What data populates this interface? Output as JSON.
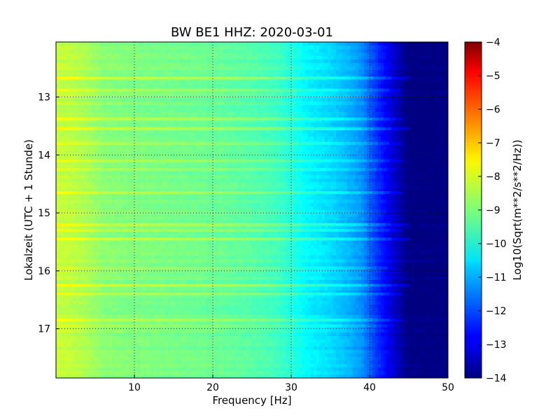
{
  "chart_data": {
    "type": "heatmap",
    "title": "BW BE1 HHZ: 2020-03-01",
    "xlabel": "Frequency [Hz]",
    "ylabel": "Lokalzeit (UTC + 1 Stunde)",
    "xlim": [
      0,
      50
    ],
    "ylim": [
      17.85,
      12.05
    ],
    "x_ticks": [
      10,
      20,
      30,
      40,
      50
    ],
    "y_ticks": [
      13,
      14,
      15,
      16,
      17
    ],
    "grid": true,
    "colormap": "jet",
    "colorbar": {
      "label": "Log10(Sqrt(m**2/s**2/Hz))",
      "range": [
        -14,
        -4
      ],
      "ticks": [
        -4,
        -5,
        -6,
        -7,
        -8,
        -9,
        -10,
        -11,
        -12,
        -13,
        -14
      ]
    },
    "frequency_profile": {
      "frequency_hz": [
        0,
        2,
        4,
        6,
        10,
        15,
        20,
        25,
        28,
        30,
        32,
        35,
        37,
        39,
        40,
        41,
        42,
        43,
        44,
        45,
        47,
        50
      ],
      "level_log10": [
        -8.3,
        -8.4,
        -8.6,
        -8.9,
        -9.0,
        -9.1,
        -9.2,
        -9.4,
        -9.6,
        -9.9,
        -10.3,
        -10.6,
        -10.9,
        -11.3,
        -11.8,
        -12.3,
        -12.7,
        -13.2,
        -13.6,
        -14,
        -14,
        -14
      ]
    },
    "bright_bands": [
      {
        "time": 12.67,
        "delta": 0.6,
        "fmax": 45
      },
      {
        "time": 12.88,
        "delta": 0.4,
        "fmax": 44
      },
      {
        "time": 13.38,
        "delta": 0.5,
        "fmax": 44
      },
      {
        "time": 13.55,
        "delta": 0.6,
        "fmax": 45
      },
      {
        "time": 13.8,
        "delta": 0.4,
        "fmax": 44
      },
      {
        "time": 14.1,
        "delta": 0.4,
        "fmax": 44
      },
      {
        "time": 14.25,
        "delta": 0.3,
        "fmax": 43
      },
      {
        "time": 14.65,
        "delta": 0.5,
        "fmax": 44
      },
      {
        "time": 15.2,
        "delta": 0.6,
        "fmax": 45
      },
      {
        "time": 15.3,
        "delta": 0.4,
        "fmax": 44
      },
      {
        "time": 15.45,
        "delta": 0.6,
        "fmax": 45
      },
      {
        "time": 15.95,
        "delta": 0.3,
        "fmax": 43
      },
      {
        "time": 16.25,
        "delta": 0.6,
        "fmax": 45
      },
      {
        "time": 16.4,
        "delta": 0.4,
        "fmax": 44
      },
      {
        "time": 16.85,
        "delta": 0.5,
        "fmax": 44
      },
      {
        "time": 16.95,
        "delta": 0.3,
        "fmax": 43
      }
    ]
  }
}
